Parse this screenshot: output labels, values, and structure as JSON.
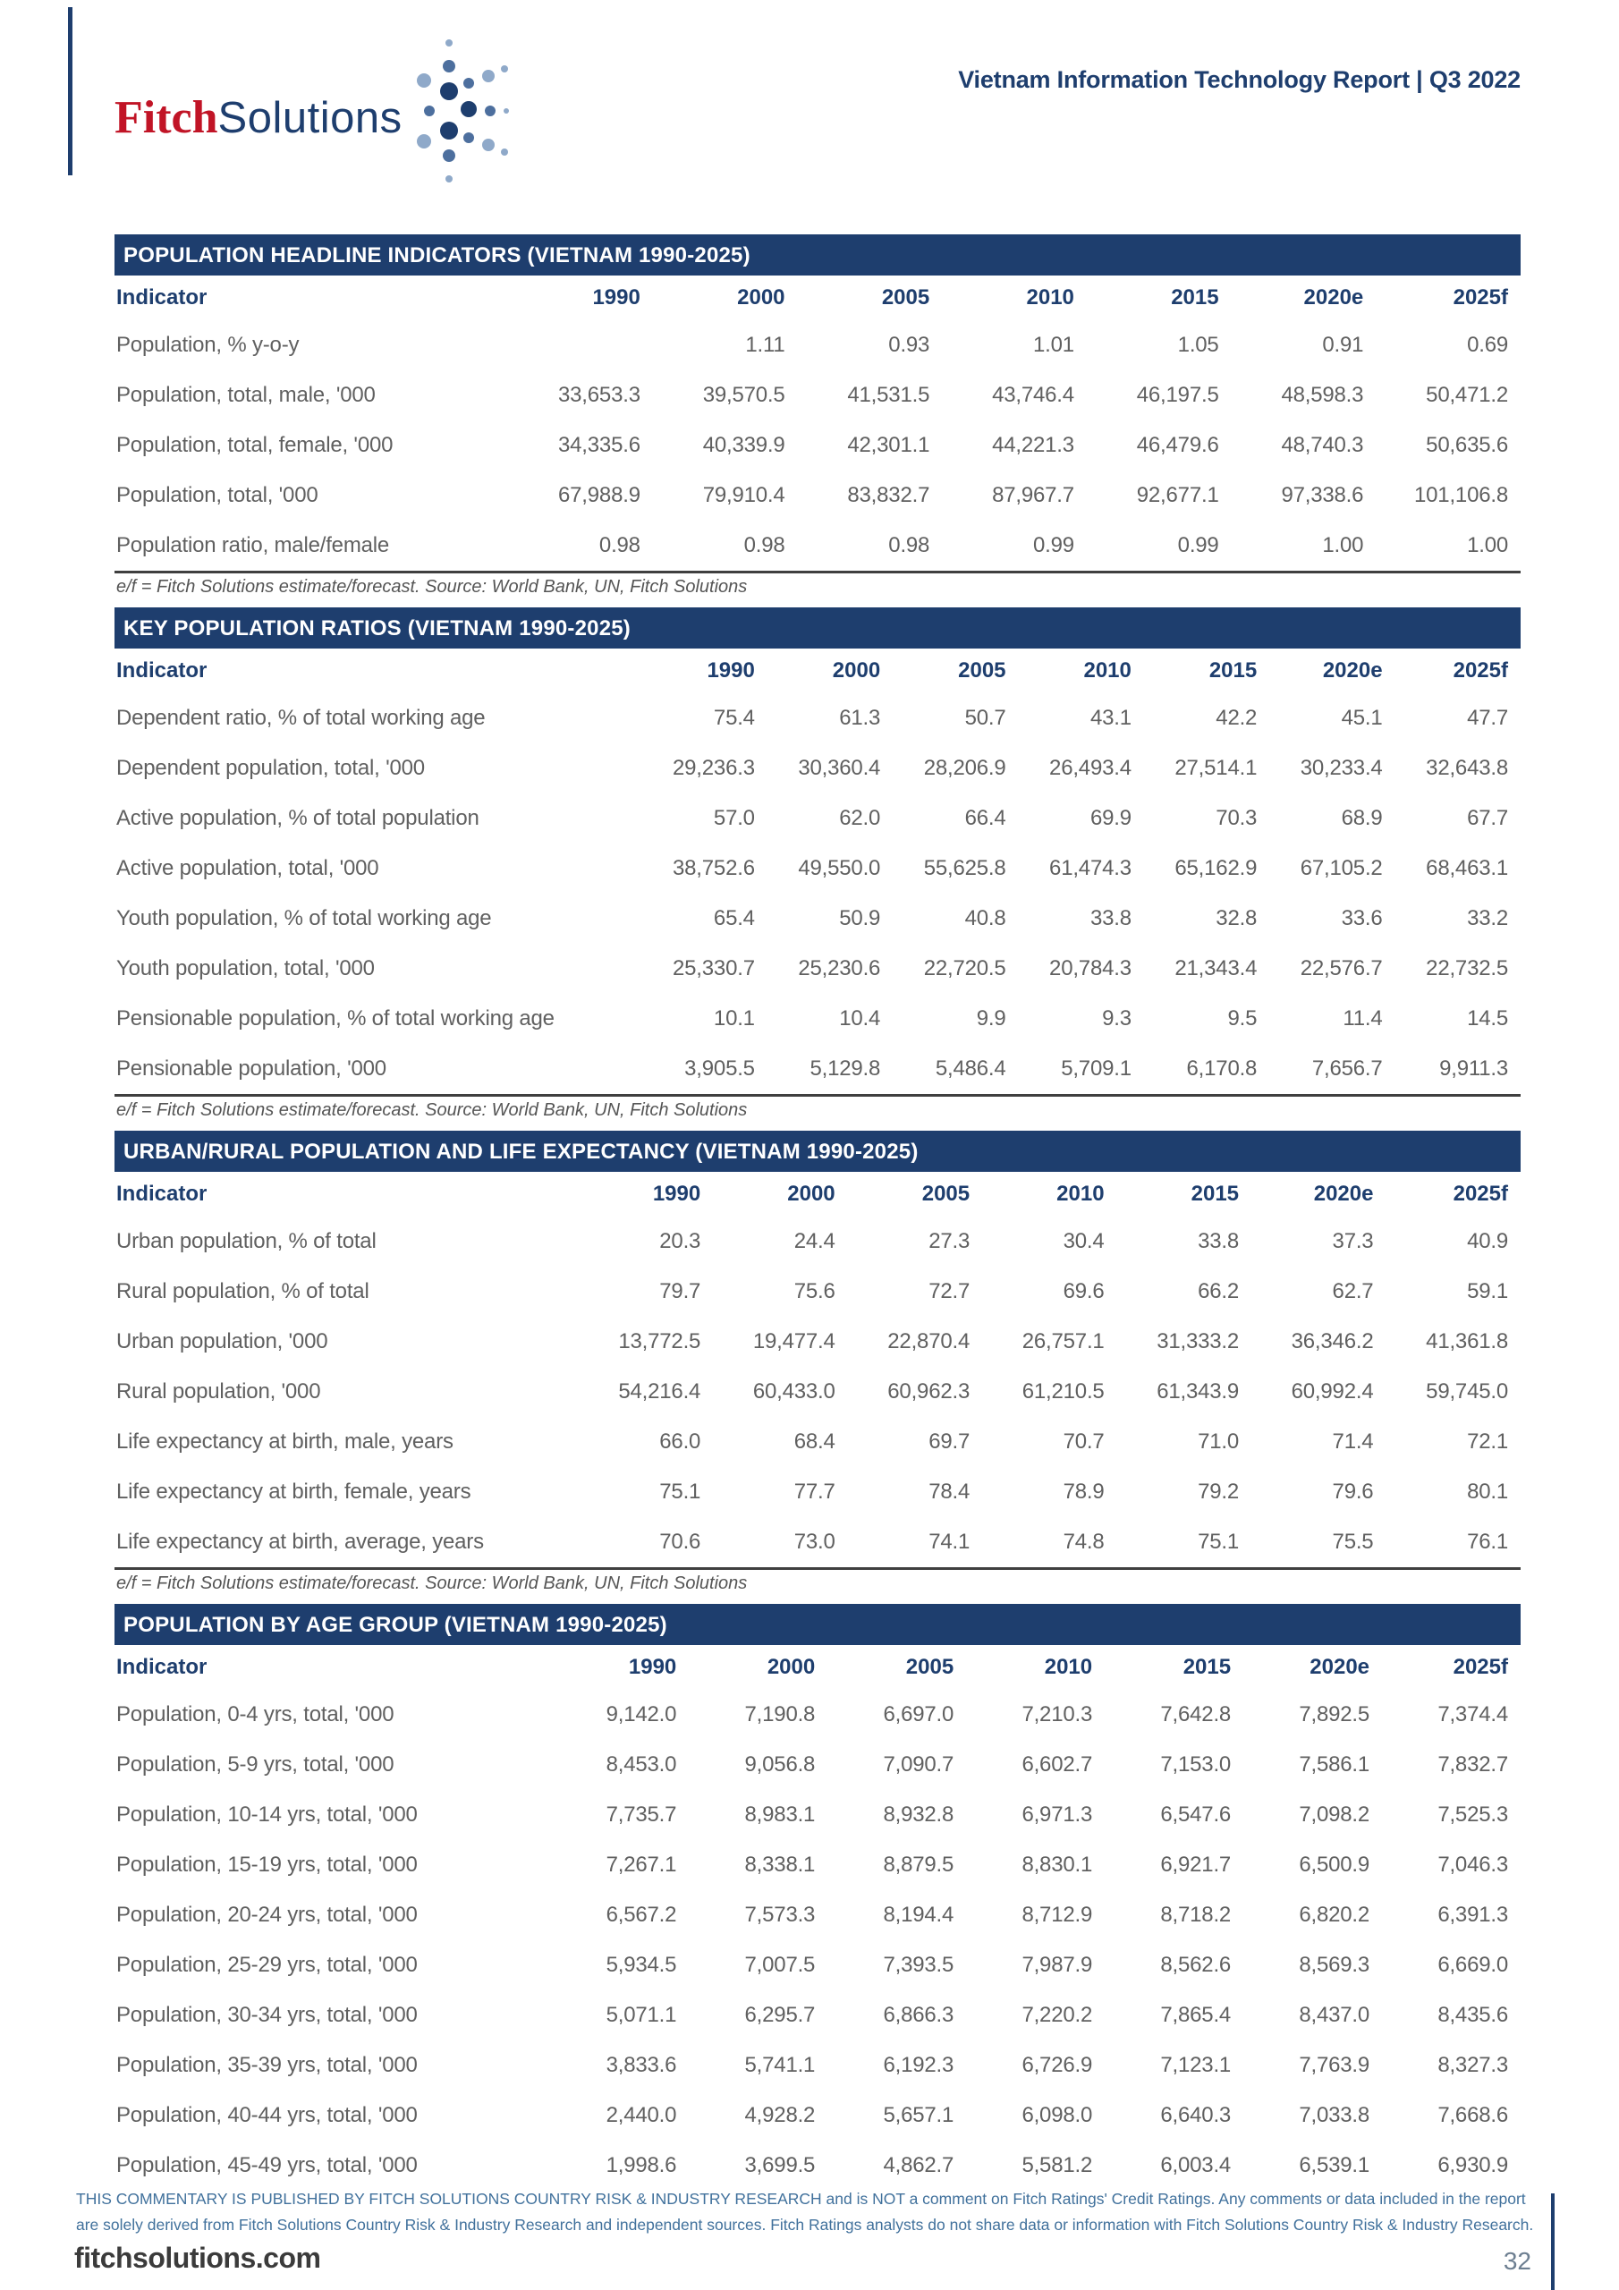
{
  "header": {
    "logo_fitch": "Fitch",
    "logo_solutions": "Solutions",
    "report_title": "Vietnam Information Technology Report | Q3 2022"
  },
  "columns": [
    "Indicator",
    "1990",
    "2000",
    "2005",
    "2010",
    "2015",
    "2020e",
    "2025f"
  ],
  "tables": [
    {
      "title": "POPULATION HEADLINE INDICATORS (VIETNAM 1990-2025)",
      "footnote": "e/f = Fitch Solutions estimate/forecast. Source: World Bank, UN, Fitch Solutions",
      "rows": [
        {
          "label": "Population, % y-o-y",
          "values": [
            "",
            "1.11",
            "0.93",
            "1.01",
            "1.05",
            "0.91",
            "0.69"
          ]
        },
        {
          "label": "Population, total, male, '000",
          "values": [
            "33,653.3",
            "39,570.5",
            "41,531.5",
            "43,746.4",
            "46,197.5",
            "48,598.3",
            "50,471.2"
          ]
        },
        {
          "label": "Population, total, female, '000",
          "values": [
            "34,335.6",
            "40,339.9",
            "42,301.1",
            "44,221.3",
            "46,479.6",
            "48,740.3",
            "50,635.6"
          ]
        },
        {
          "label": "Population, total, '000",
          "values": [
            "67,988.9",
            "79,910.4",
            "83,832.7",
            "87,967.7",
            "92,677.1",
            "97,338.6",
            "101,106.8"
          ]
        },
        {
          "label": "Population ratio, male/female",
          "values": [
            "0.98",
            "0.98",
            "0.98",
            "0.99",
            "0.99",
            "1.00",
            "1.00"
          ]
        }
      ]
    },
    {
      "title": "KEY POPULATION RATIOS (VIETNAM 1990-2025)",
      "footnote": "e/f = Fitch Solutions estimate/forecast. Source: World Bank, UN, Fitch Solutions",
      "rows": [
        {
          "label": "Dependent ratio, % of total working age",
          "values": [
            "75.4",
            "61.3",
            "50.7",
            "43.1",
            "42.2",
            "45.1",
            "47.7"
          ]
        },
        {
          "label": "Dependent population, total, '000",
          "values": [
            "29,236.3",
            "30,360.4",
            "28,206.9",
            "26,493.4",
            "27,514.1",
            "30,233.4",
            "32,643.8"
          ]
        },
        {
          "label": "Active population, % of total population",
          "values": [
            "57.0",
            "62.0",
            "66.4",
            "69.9",
            "70.3",
            "68.9",
            "67.7"
          ]
        },
        {
          "label": "Active population, total, '000",
          "values": [
            "38,752.6",
            "49,550.0",
            "55,625.8",
            "61,474.3",
            "65,162.9",
            "67,105.2",
            "68,463.1"
          ]
        },
        {
          "label": "Youth population, % of total working age",
          "values": [
            "65.4",
            "50.9",
            "40.8",
            "33.8",
            "32.8",
            "33.6",
            "33.2"
          ]
        },
        {
          "label": "Youth population, total, '000",
          "values": [
            "25,330.7",
            "25,230.6",
            "22,720.5",
            "20,784.3",
            "21,343.4",
            "22,576.7",
            "22,732.5"
          ]
        },
        {
          "label": "Pensionable population, % of total working age",
          "values": [
            "10.1",
            "10.4",
            "9.9",
            "9.3",
            "9.5",
            "11.4",
            "14.5"
          ]
        },
        {
          "label": "Pensionable population, '000",
          "values": [
            "3,905.5",
            "5,129.8",
            "5,486.4",
            "5,709.1",
            "6,170.8",
            "7,656.7",
            "9,911.3"
          ]
        }
      ]
    },
    {
      "title": "URBAN/RURAL POPULATION AND LIFE EXPECTANCY (VIETNAM 1990-2025)",
      "footnote": "e/f = Fitch Solutions estimate/forecast. Source: World Bank, UN, Fitch Solutions",
      "rows": [
        {
          "label": "Urban population, % of total",
          "values": [
            "20.3",
            "24.4",
            "27.3",
            "30.4",
            "33.8",
            "37.3",
            "40.9"
          ]
        },
        {
          "label": "Rural population, % of total",
          "values": [
            "79.7",
            "75.6",
            "72.7",
            "69.6",
            "66.2",
            "62.7",
            "59.1"
          ]
        },
        {
          "label": "Urban population, '000",
          "values": [
            "13,772.5",
            "19,477.4",
            "22,870.4",
            "26,757.1",
            "31,333.2",
            "36,346.2",
            "41,361.8"
          ]
        },
        {
          "label": "Rural population, '000",
          "values": [
            "54,216.4",
            "60,433.0",
            "60,962.3",
            "61,210.5",
            "61,343.9",
            "60,992.4",
            "59,745.0"
          ]
        },
        {
          "label": "Life expectancy at birth, male, years",
          "values": [
            "66.0",
            "68.4",
            "69.7",
            "70.7",
            "71.0",
            "71.4",
            "72.1"
          ]
        },
        {
          "label": "Life expectancy at birth, female, years",
          "values": [
            "75.1",
            "77.7",
            "78.4",
            "78.9",
            "79.2",
            "79.6",
            "80.1"
          ]
        },
        {
          "label": "Life expectancy at birth, average, years",
          "values": [
            "70.6",
            "73.0",
            "74.1",
            "74.8",
            "75.1",
            "75.5",
            "76.1"
          ]
        }
      ]
    },
    {
      "title": "POPULATION BY AGE GROUP (VIETNAM 1990-2025)",
      "footnote": "",
      "rows": [
        {
          "label": "Population, 0-4 yrs, total, '000",
          "values": [
            "9,142.0",
            "7,190.8",
            "6,697.0",
            "7,210.3",
            "7,642.8",
            "7,892.5",
            "7,374.4"
          ]
        },
        {
          "label": "Population, 5-9 yrs, total, '000",
          "values": [
            "8,453.0",
            "9,056.8",
            "7,090.7",
            "6,602.7",
            "7,153.0",
            "7,586.1",
            "7,832.7"
          ]
        },
        {
          "label": "Population, 10-14 yrs, total, '000",
          "values": [
            "7,735.7",
            "8,983.1",
            "8,932.8",
            "6,971.3",
            "6,547.6",
            "7,098.2",
            "7,525.3"
          ]
        },
        {
          "label": "Population, 15-19 yrs, total, '000",
          "values": [
            "7,267.1",
            "8,338.1",
            "8,879.5",
            "8,830.1",
            "6,921.7",
            "6,500.9",
            "7,046.3"
          ]
        },
        {
          "label": "Population, 20-24 yrs, total, '000",
          "values": [
            "6,567.2",
            "7,573.3",
            "8,194.4",
            "8,712.9",
            "8,718.2",
            "6,820.2",
            "6,391.3"
          ]
        },
        {
          "label": "Population, 25-29 yrs, total, '000",
          "values": [
            "5,934.5",
            "7,007.5",
            "7,393.5",
            "7,987.9",
            "8,562.6",
            "8,569.3",
            "6,669.0"
          ]
        },
        {
          "label": "Population, 30-34 yrs, total, '000",
          "values": [
            "5,071.1",
            "6,295.7",
            "6,866.3",
            "7,220.2",
            "7,865.4",
            "8,437.0",
            "8,435.6"
          ]
        },
        {
          "label": "Population, 35-39 yrs, total, '000",
          "values": [
            "3,833.6",
            "5,741.1",
            "6,192.3",
            "6,726.9",
            "7,123.1",
            "7,763.9",
            "8,327.3"
          ]
        },
        {
          "label": "Population, 40-44 yrs, total, '000",
          "values": [
            "2,440.0",
            "4,928.2",
            "5,657.1",
            "6,098.0",
            "6,640.3",
            "7,033.8",
            "7,668.6"
          ]
        },
        {
          "label": "Population, 45-49 yrs, total, '000",
          "values": [
            "1,998.6",
            "3,699.5",
            "4,862.7",
            "5,581.2",
            "6,003.4",
            "6,539.1",
            "6,930.9"
          ]
        }
      ]
    }
  ],
  "footer": {
    "disclaimer": "THIS COMMENTARY IS PUBLISHED BY FITCH SOLUTIONS COUNTRY RISK & INDUSTRY RESEARCH and is NOT a comment on Fitch Ratings' Credit Ratings. Any comments or data included in the report are solely derived from Fitch Solutions Country Risk & Industry Research and independent sources. Fitch Ratings analysts do not share data or information with Fitch Solutions Country Risk & Industry Research.",
    "website": "fitchsolutions.com",
    "page_number": "32"
  },
  "colors": {
    "navy": "#1e3e6e",
    "fitch_red": "#c11426",
    "body_text_gray": "#606060",
    "disclaimer_blue": "#41719c"
  }
}
